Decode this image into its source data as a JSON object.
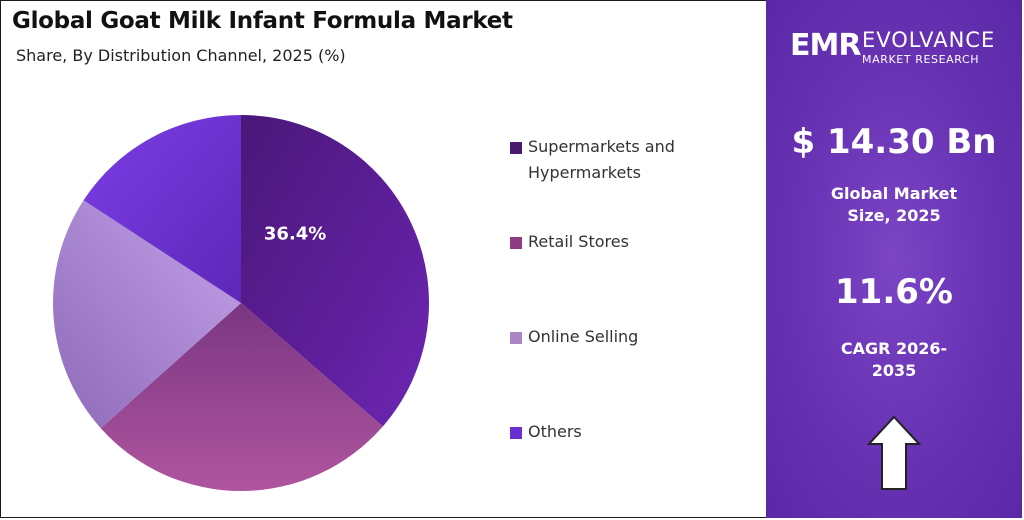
{
  "header": {
    "title": "Global Goat Milk Infant Formula Market",
    "subtitle": "Share, By Distribution Channel, 2025 (%)"
  },
  "chart_data": {
    "type": "pie",
    "title": "Global Goat Milk Infant Formula Market",
    "subtitle": "Share, By Distribution Channel, 2025 (%)",
    "categories": [
      "Supermarkets and Hypermarkets",
      "Retail Stores",
      "Online Selling",
      "Others"
    ],
    "values": [
      36.4,
      27.0,
      20.8,
      15.8
    ],
    "colors": [
      "#5e1d9e",
      "#9a4796",
      "#b48fe0",
      "#6d2fd6"
    ],
    "data_labels": [
      "36.4%",
      "",
      "",
      ""
    ],
    "start_angle": "12 o'clock",
    "direction": "clockwise",
    "legend_position": "right"
  },
  "legend": [
    {
      "label": "Supermarkets and Hypermarkets",
      "color": "#4a1a6e"
    },
    {
      "label": "Retail Stores",
      "color": "#8e3d82"
    },
    {
      "label": "Online Selling",
      "color": "#a985c4"
    },
    {
      "label": "Others",
      "color": "#6a2fd0"
    }
  ],
  "sidebar": {
    "logo_mark": "EMR",
    "logo_name": "EVOLVANCE",
    "logo_sub": "MARKET RESEARCH",
    "market_size": "$ 14.30 Bn",
    "market_size_label": "Global Market Size, 2025",
    "cagr": "11.6%",
    "cagr_label": "CAGR 2026-2035",
    "arrow_icon": "up-arrow-icon"
  }
}
